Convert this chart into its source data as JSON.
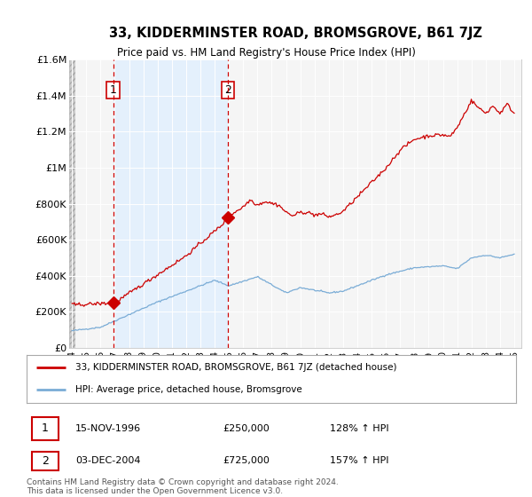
{
  "title": "33, KIDDERMINSTER ROAD, BROMSGROVE, B61 7JZ",
  "subtitle": "Price paid vs. HM Land Registry's House Price Index (HPI)",
  "legend_line1": "33, KIDDERMINSTER ROAD, BROMSGROVE, B61 7JZ (detached house)",
  "legend_line2": "HPI: Average price, detached house, Bromsgrove",
  "annotation1_date": "15-NOV-1996",
  "annotation1_price": "£250,000",
  "annotation1_hpi": "128% ↑ HPI",
  "annotation2_date": "03-DEC-2004",
  "annotation2_price": "£725,000",
  "annotation2_hpi": "157% ↑ HPI",
  "footer": "Contains HM Land Registry data © Crown copyright and database right 2024.\nThis data is licensed under the Open Government Licence v3.0.",
  "red_line_color": "#cc0000",
  "blue_line_color": "#7aacd6",
  "background_color": "#ffffff",
  "plot_bg_color": "#f5f5f5",
  "grid_color": "#dddddd",
  "shade_color": "#ddeeff",
  "hatch_color": "#cccccc",
  "ylim": [
    0,
    1600000
  ],
  "yticks": [
    0,
    200000,
    400000,
    600000,
    800000,
    1000000,
    1200000,
    1400000,
    1600000
  ],
  "ytick_labels": [
    "£0",
    "£200K",
    "£400K",
    "£600K",
    "£800K",
    "£1M",
    "£1.2M",
    "£1.4M",
    "£1.6M"
  ],
  "point1_x": 1996.88,
  "point1_y": 250000,
  "point2_x": 2004.92,
  "point2_y": 725000,
  "xlim_left": 1993.8,
  "xlim_right": 2025.5,
  "hatch_xend": 1994.25,
  "xticks": [
    1994,
    1995,
    1996,
    1997,
    1998,
    1999,
    2000,
    2001,
    2002,
    2003,
    2004,
    2005,
    2006,
    2007,
    2008,
    2009,
    2010,
    2011,
    2012,
    2013,
    2014,
    2015,
    2016,
    2017,
    2018,
    2019,
    2020,
    2021,
    2022,
    2023,
    2024,
    2025
  ]
}
